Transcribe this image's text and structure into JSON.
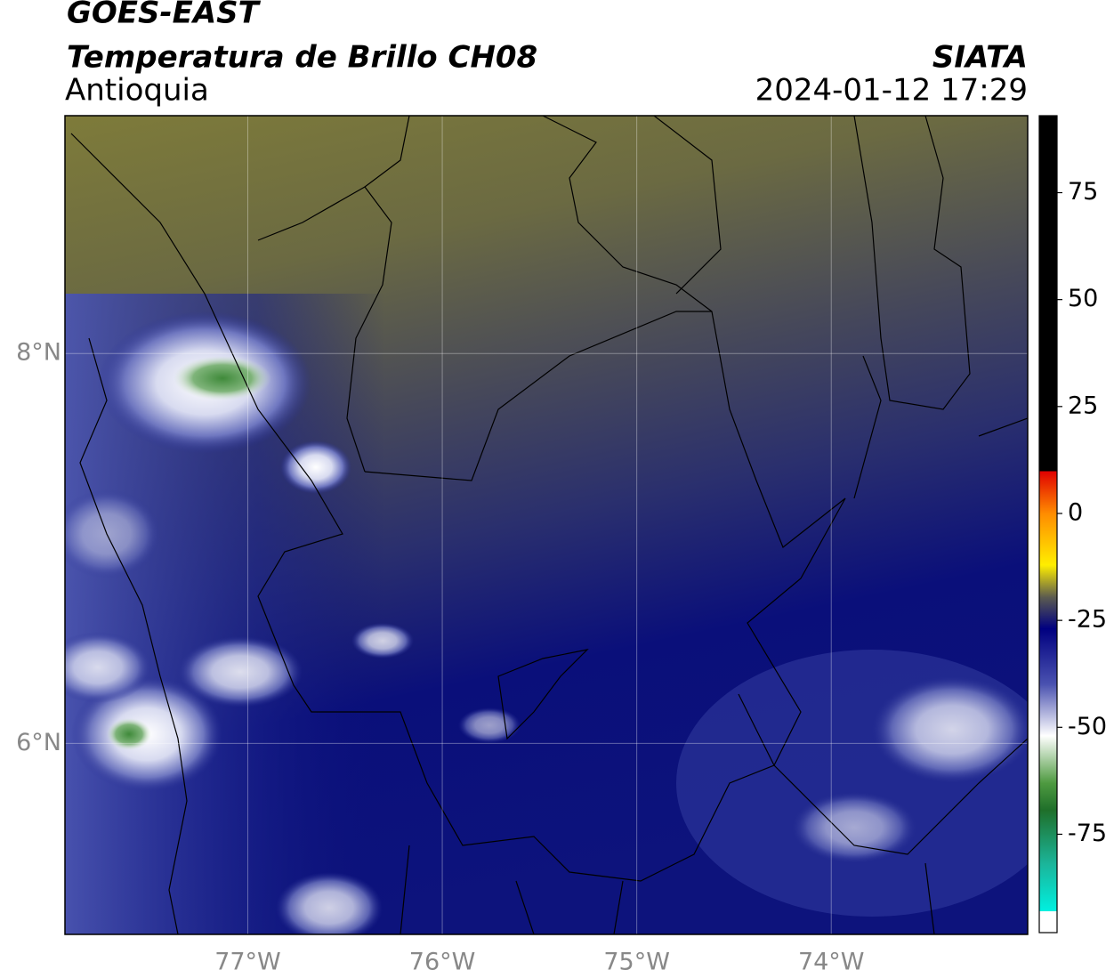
{
  "header": {
    "title": "GOES-EAST",
    "subtitle": "Temperatura de Brillo CH08",
    "region": "Antioquia",
    "source": "SIATA",
    "datetime": "2024-01-12 17:29"
  },
  "map": {
    "xlim": [
      -77.94,
      -72.99
    ],
    "ylim": [
      5.02,
      9.22
    ],
    "xticks": [
      {
        "value": -77,
        "label": "77°W"
      },
      {
        "value": -76,
        "label": "76°W"
      },
      {
        "value": -75,
        "label": "75°W"
      },
      {
        "value": -74,
        "label": "74°W"
      }
    ],
    "yticks": [
      {
        "value": 8,
        "label": "8°N"
      },
      {
        "value": 6,
        "label": "6°N"
      }
    ],
    "grid": true
  },
  "colorbar": {
    "lim": [
      -98,
      93
    ],
    "ticks": [
      75,
      50,
      25,
      0,
      -25,
      -50,
      -75
    ]
  }
}
